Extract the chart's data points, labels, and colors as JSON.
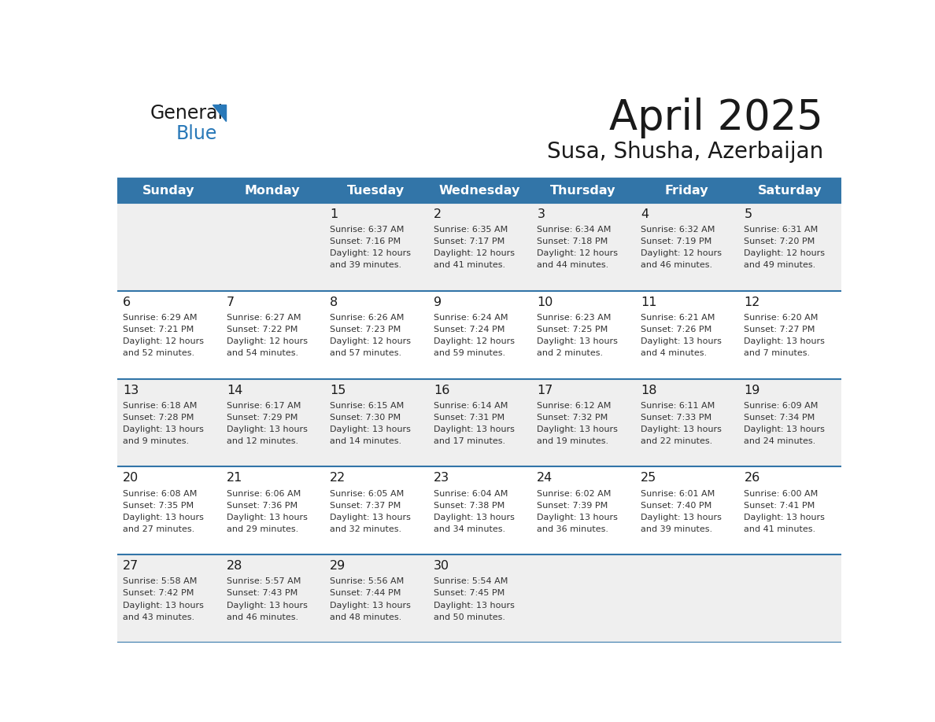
{
  "title": "April 2025",
  "subtitle": "Susa, Shusha, Azerbaijan",
  "header_bg_color": "#3275a8",
  "header_text_color": "#ffffff",
  "row_bg_light": "#efefef",
  "row_bg_white": "#ffffff",
  "border_color": "#3275a8",
  "day_headers": [
    "Sunday",
    "Monday",
    "Tuesday",
    "Wednesday",
    "Thursday",
    "Friday",
    "Saturday"
  ],
  "title_color": "#1a1a1a",
  "subtitle_color": "#1a1a1a",
  "cell_text_color": "#333333",
  "day_num_color": "#1a1a1a",
  "logo_general_color": "#1a1a1a",
  "logo_blue_color": "#2878b8",
  "logo_triangle_color": "#2878b8",
  "calendar": [
    [
      {
        "day": "",
        "sunrise": "",
        "sunset": "",
        "daylight_line1": "",
        "daylight_line2": ""
      },
      {
        "day": "",
        "sunrise": "",
        "sunset": "",
        "daylight_line1": "",
        "daylight_line2": ""
      },
      {
        "day": "1",
        "sunrise": "Sunrise: 6:37 AM",
        "sunset": "Sunset: 7:16 PM",
        "daylight_line1": "Daylight: 12 hours",
        "daylight_line2": "and 39 minutes."
      },
      {
        "day": "2",
        "sunrise": "Sunrise: 6:35 AM",
        "sunset": "Sunset: 7:17 PM",
        "daylight_line1": "Daylight: 12 hours",
        "daylight_line2": "and 41 minutes."
      },
      {
        "day": "3",
        "sunrise": "Sunrise: 6:34 AM",
        "sunset": "Sunset: 7:18 PM",
        "daylight_line1": "Daylight: 12 hours",
        "daylight_line2": "and 44 minutes."
      },
      {
        "day": "4",
        "sunrise": "Sunrise: 6:32 AM",
        "sunset": "Sunset: 7:19 PM",
        "daylight_line1": "Daylight: 12 hours",
        "daylight_line2": "and 46 minutes."
      },
      {
        "day": "5",
        "sunrise": "Sunrise: 6:31 AM",
        "sunset": "Sunset: 7:20 PM",
        "daylight_line1": "Daylight: 12 hours",
        "daylight_line2": "and 49 minutes."
      }
    ],
    [
      {
        "day": "6",
        "sunrise": "Sunrise: 6:29 AM",
        "sunset": "Sunset: 7:21 PM",
        "daylight_line1": "Daylight: 12 hours",
        "daylight_line2": "and 52 minutes."
      },
      {
        "day": "7",
        "sunrise": "Sunrise: 6:27 AM",
        "sunset": "Sunset: 7:22 PM",
        "daylight_line1": "Daylight: 12 hours",
        "daylight_line2": "and 54 minutes."
      },
      {
        "day": "8",
        "sunrise": "Sunrise: 6:26 AM",
        "sunset": "Sunset: 7:23 PM",
        "daylight_line1": "Daylight: 12 hours",
        "daylight_line2": "and 57 minutes."
      },
      {
        "day": "9",
        "sunrise": "Sunrise: 6:24 AM",
        "sunset": "Sunset: 7:24 PM",
        "daylight_line1": "Daylight: 12 hours",
        "daylight_line2": "and 59 minutes."
      },
      {
        "day": "10",
        "sunrise": "Sunrise: 6:23 AM",
        "sunset": "Sunset: 7:25 PM",
        "daylight_line1": "Daylight: 13 hours",
        "daylight_line2": "and 2 minutes."
      },
      {
        "day": "11",
        "sunrise": "Sunrise: 6:21 AM",
        "sunset": "Sunset: 7:26 PM",
        "daylight_line1": "Daylight: 13 hours",
        "daylight_line2": "and 4 minutes."
      },
      {
        "day": "12",
        "sunrise": "Sunrise: 6:20 AM",
        "sunset": "Sunset: 7:27 PM",
        "daylight_line1": "Daylight: 13 hours",
        "daylight_line2": "and 7 minutes."
      }
    ],
    [
      {
        "day": "13",
        "sunrise": "Sunrise: 6:18 AM",
        "sunset": "Sunset: 7:28 PM",
        "daylight_line1": "Daylight: 13 hours",
        "daylight_line2": "and 9 minutes."
      },
      {
        "day": "14",
        "sunrise": "Sunrise: 6:17 AM",
        "sunset": "Sunset: 7:29 PM",
        "daylight_line1": "Daylight: 13 hours",
        "daylight_line2": "and 12 minutes."
      },
      {
        "day": "15",
        "sunrise": "Sunrise: 6:15 AM",
        "sunset": "Sunset: 7:30 PM",
        "daylight_line1": "Daylight: 13 hours",
        "daylight_line2": "and 14 minutes."
      },
      {
        "day": "16",
        "sunrise": "Sunrise: 6:14 AM",
        "sunset": "Sunset: 7:31 PM",
        "daylight_line1": "Daylight: 13 hours",
        "daylight_line2": "and 17 minutes."
      },
      {
        "day": "17",
        "sunrise": "Sunrise: 6:12 AM",
        "sunset": "Sunset: 7:32 PM",
        "daylight_line1": "Daylight: 13 hours",
        "daylight_line2": "and 19 minutes."
      },
      {
        "day": "18",
        "sunrise": "Sunrise: 6:11 AM",
        "sunset": "Sunset: 7:33 PM",
        "daylight_line1": "Daylight: 13 hours",
        "daylight_line2": "and 22 minutes."
      },
      {
        "day": "19",
        "sunrise": "Sunrise: 6:09 AM",
        "sunset": "Sunset: 7:34 PM",
        "daylight_line1": "Daylight: 13 hours",
        "daylight_line2": "and 24 minutes."
      }
    ],
    [
      {
        "day": "20",
        "sunrise": "Sunrise: 6:08 AM",
        "sunset": "Sunset: 7:35 PM",
        "daylight_line1": "Daylight: 13 hours",
        "daylight_line2": "and 27 minutes."
      },
      {
        "day": "21",
        "sunrise": "Sunrise: 6:06 AM",
        "sunset": "Sunset: 7:36 PM",
        "daylight_line1": "Daylight: 13 hours",
        "daylight_line2": "and 29 minutes."
      },
      {
        "day": "22",
        "sunrise": "Sunrise: 6:05 AM",
        "sunset": "Sunset: 7:37 PM",
        "daylight_line1": "Daylight: 13 hours",
        "daylight_line2": "and 32 minutes."
      },
      {
        "day": "23",
        "sunrise": "Sunrise: 6:04 AM",
        "sunset": "Sunset: 7:38 PM",
        "daylight_line1": "Daylight: 13 hours",
        "daylight_line2": "and 34 minutes."
      },
      {
        "day": "24",
        "sunrise": "Sunrise: 6:02 AM",
        "sunset": "Sunset: 7:39 PM",
        "daylight_line1": "Daylight: 13 hours",
        "daylight_line2": "and 36 minutes."
      },
      {
        "day": "25",
        "sunrise": "Sunrise: 6:01 AM",
        "sunset": "Sunset: 7:40 PM",
        "daylight_line1": "Daylight: 13 hours",
        "daylight_line2": "and 39 minutes."
      },
      {
        "day": "26",
        "sunrise": "Sunrise: 6:00 AM",
        "sunset": "Sunset: 7:41 PM",
        "daylight_line1": "Daylight: 13 hours",
        "daylight_line2": "and 41 minutes."
      }
    ],
    [
      {
        "day": "27",
        "sunrise": "Sunrise: 5:58 AM",
        "sunset": "Sunset: 7:42 PM",
        "daylight_line1": "Daylight: 13 hours",
        "daylight_line2": "and 43 minutes."
      },
      {
        "day": "28",
        "sunrise": "Sunrise: 5:57 AM",
        "sunset": "Sunset: 7:43 PM",
        "daylight_line1": "Daylight: 13 hours",
        "daylight_line2": "and 46 minutes."
      },
      {
        "day": "29",
        "sunrise": "Sunrise: 5:56 AM",
        "sunset": "Sunset: 7:44 PM",
        "daylight_line1": "Daylight: 13 hours",
        "daylight_line2": "and 48 minutes."
      },
      {
        "day": "30",
        "sunrise": "Sunrise: 5:54 AM",
        "sunset": "Sunset: 7:45 PM",
        "daylight_line1": "Daylight: 13 hours",
        "daylight_line2": "and 50 minutes."
      },
      {
        "day": "",
        "sunrise": "",
        "sunset": "",
        "daylight_line1": "",
        "daylight_line2": ""
      },
      {
        "day": "",
        "sunrise": "",
        "sunset": "",
        "daylight_line1": "",
        "daylight_line2": ""
      },
      {
        "day": "",
        "sunrise": "",
        "sunset": "",
        "daylight_line1": "",
        "daylight_line2": ""
      }
    ]
  ]
}
